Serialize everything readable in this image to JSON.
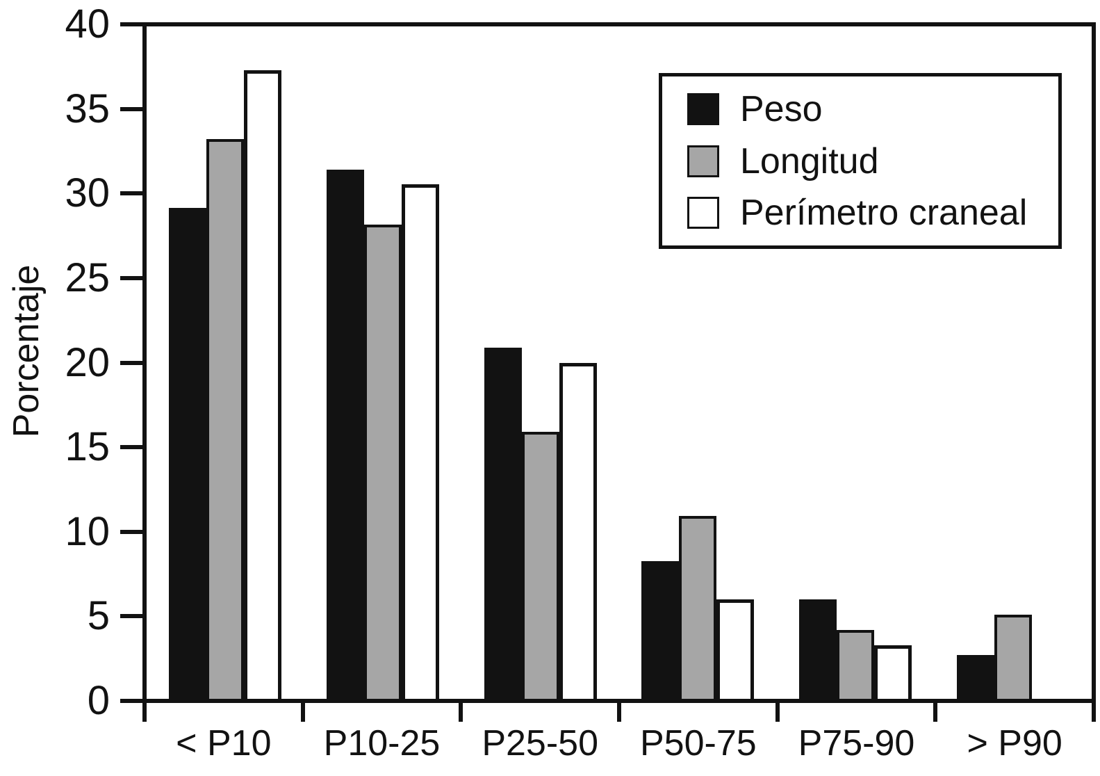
{
  "chart_data": {
    "type": "bar",
    "title": "",
    "ylabel": "Porcentaje",
    "xlabel": "",
    "ylim": [
      0,
      40
    ],
    "ytick_step": 5,
    "ytick_labels": [
      "40",
      "35",
      "30",
      "25",
      "20",
      "15",
      "10",
      "5",
      "0"
    ],
    "categories": [
      "< P10",
      "P10-25",
      "P25-50",
      "P50-75",
      "P75-90",
      "> P90"
    ],
    "series": [
      {
        "name": "Peso",
        "color": "#121212",
        "values": [
          29.2,
          31.5,
          20.9,
          8.2,
          5.9,
          2.6
        ]
      },
      {
        "name": "Longitud",
        "color": "#a6a6a6",
        "values": [
          33.3,
          28.2,
          15.9,
          10.9,
          4.1,
          5.0
        ]
      },
      {
        "name": "Perímetro craneal",
        "color": "#ffffff",
        "values": [
          37.4,
          30.6,
          20.0,
          5.9,
          3.2,
          0
        ]
      }
    ],
    "legend": {
      "position": "top-right",
      "entries": [
        "Peso",
        "Longitud",
        "Perímetro craneal"
      ]
    },
    "grid": false,
    "axis_color": "#121212"
  }
}
